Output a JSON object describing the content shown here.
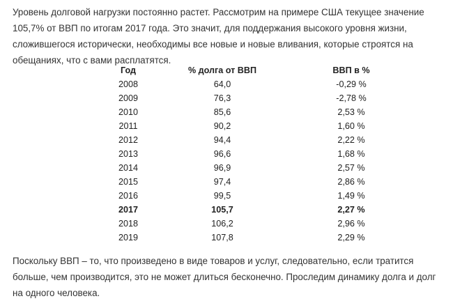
{
  "intro_text": "Уровень долговой нагрузки постоянно растет. Рассмотрим на примере США текущее значение 105,7% от ВВП по итогам 2017 года. Это значит, для поддержания высокого уровня жизни, сложившегося исторически, необходимы все новые и новые вливания, которые строятся на обещаниях, что с вами расплатятся.",
  "table": {
    "headers": {
      "year": "Год",
      "debt": "% долга от ВВП",
      "gdp": "ВВП в %"
    },
    "rows": [
      {
        "year": "2008",
        "debt": "64,0",
        "gdp": "-0,29 %",
        "bold": false
      },
      {
        "year": "2009",
        "debt": "76,3",
        "gdp": "-2,78 %",
        "bold": false
      },
      {
        "year": "2010",
        "debt": "85,6",
        "gdp": "2,53 %",
        "bold": false
      },
      {
        "year": "2011",
        "debt": "90,2",
        "gdp": "1,60 %",
        "bold": false
      },
      {
        "year": "2012",
        "debt": "94,4",
        "gdp": "2,22 %",
        "bold": false
      },
      {
        "year": "2013",
        "debt": "96,6",
        "gdp": "1,68 %",
        "bold": false
      },
      {
        "year": "2014",
        "debt": "96,9",
        "gdp": "2,57 %",
        "bold": false
      },
      {
        "year": "2015",
        "debt": "97,4",
        "gdp": "2,86 %",
        "bold": false
      },
      {
        "year": "2016",
        "debt": "99,5",
        "gdp": "1,49 %",
        "bold": false
      },
      {
        "year": "2017",
        "debt": "105,7",
        "gdp": "2,27 %",
        "bold": true
      },
      {
        "year": "2018",
        "debt": "106,2",
        "gdp": "2,96 %",
        "bold": false
      },
      {
        "year": "2019",
        "debt": "107,8",
        "gdp": "2,29 %",
        "bold": false
      }
    ]
  },
  "outro_text": "Поскольку ВВП – то, что произведено в виде товаров и услуг, следовательно, если тратится больше, чем производится, это не может длиться бесконечно. Проследим динамику долга и долг на одного человека."
}
